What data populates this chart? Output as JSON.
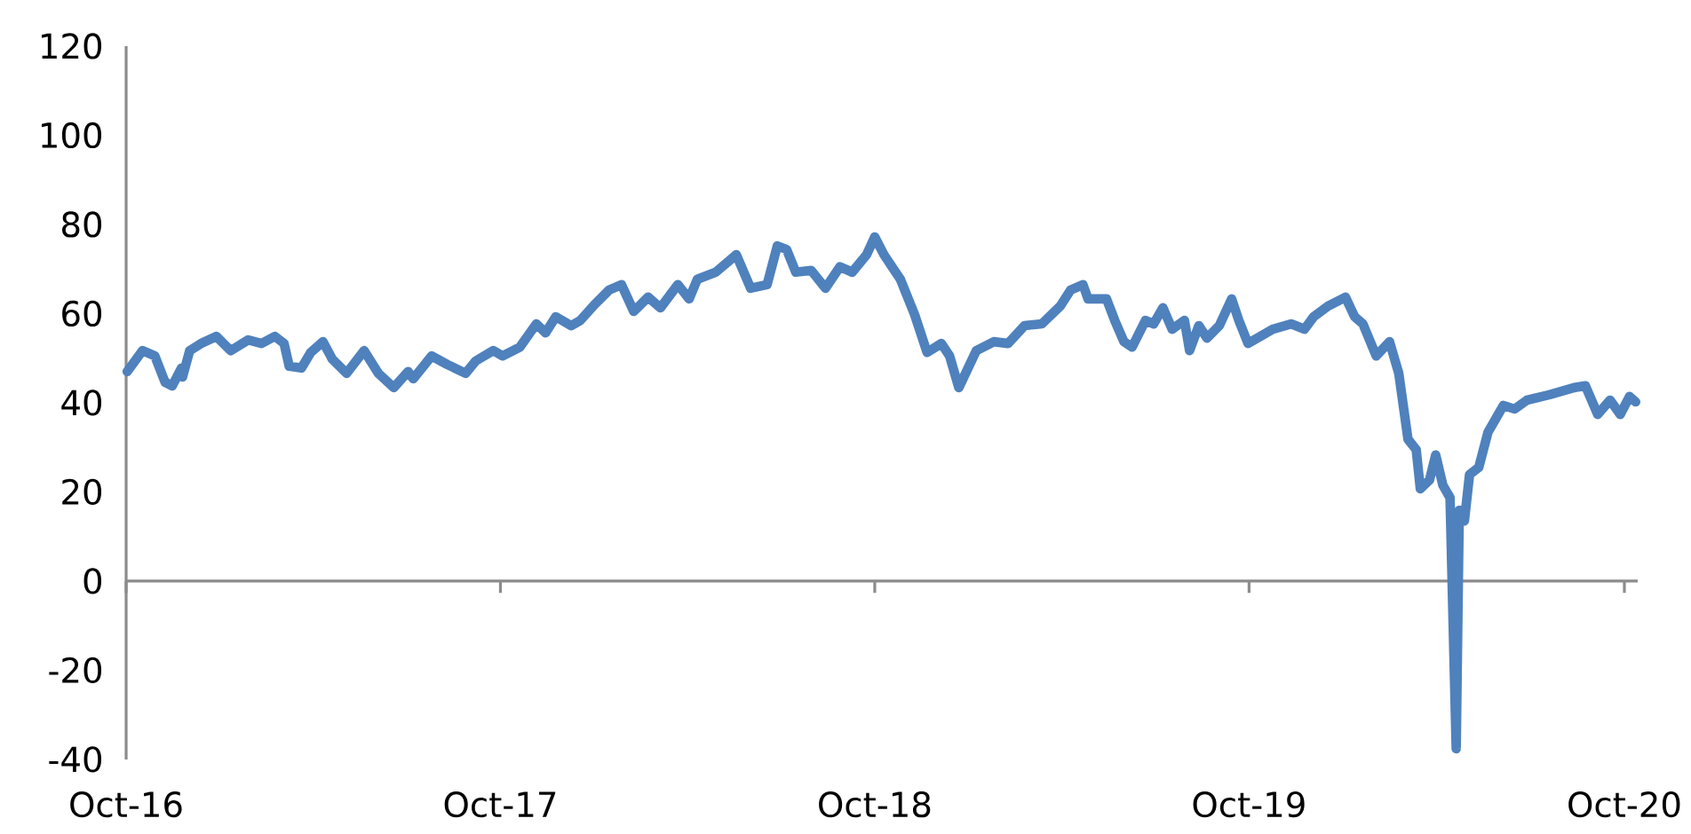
{
  "chart_data": {
    "type": "line",
    "x": [
      "2016-10-02",
      "2016-10-17",
      "2016-10-29",
      "2016-11-08",
      "2016-11-15",
      "2016-11-24",
      "2016-11-25",
      "2016-12-02",
      "2016-12-13",
      "2016-12-28",
      "2017-01-11",
      "2017-01-28",
      "2017-02-10",
      "2017-02-23",
      "2017-03-04",
      "2017-03-09",
      "2017-03-21",
      "2017-03-30",
      "2017-04-11",
      "2017-04-20",
      "2017-05-04",
      "2017-05-21",
      "2017-06-04",
      "2017-06-19",
      "2017-07-03",
      "2017-07-08",
      "2017-07-26",
      "2017-08-10",
      "2017-08-28",
      "2017-09-07",
      "2017-09-24",
      "2017-10-03",
      "2017-10-20",
      "2017-11-05",
      "2017-11-14",
      "2017-11-24",
      "2017-12-09",
      "2017-12-18",
      "2018-01-01",
      "2018-01-15",
      "2018-01-27",
      "2018-02-08",
      "2018-02-22",
      "2018-03-06",
      "2018-03-23",
      "2018-04-03",
      "2018-04-11",
      "2018-04-29",
      "2018-05-19",
      "2018-06-02",
      "2018-06-18",
      "2018-06-28",
      "2018-07-07",
      "2018-07-16",
      "2018-07-31",
      "2018-08-14",
      "2018-08-28",
      "2018-09-09",
      "2018-09-23",
      "2018-10-01",
      "2018-10-10",
      "2018-10-26",
      "2018-11-09",
      "2018-11-21",
      "2018-12-05",
      "2018-12-13",
      "2018-12-22",
      "2019-01-08",
      "2019-01-25",
      "2019-02-08",
      "2019-02-24",
      "2019-03-13",
      "2019-03-31",
      "2019-04-10",
      "2019-04-22",
      "2019-04-27",
      "2019-05-15",
      "2019-05-23",
      "2019-06-01",
      "2019-06-09",
      "2019-06-22",
      "2019-06-30",
      "2019-07-09",
      "2019-07-18",
      "2019-07-30",
      "2019-08-04",
      "2019-08-13",
      "2019-08-21",
      "2019-09-02",
      "2019-09-14",
      "2019-09-21",
      "2019-09-30",
      "2019-10-09",
      "2019-10-24",
      "2019-11-11",
      "2019-11-24",
      "2019-12-03",
      "2019-12-17",
      "2020-01-03",
      "2020-01-12",
      "2020-01-20",
      "2020-02-02",
      "2020-02-15",
      "2020-02-24",
      "2020-03-04",
      "2020-03-12",
      "2020-03-16",
      "2020-03-25",
      "2020-03-31",
      "2020-04-07",
      "2020-04-14",
      "2020-04-20",
      "2020-04-23",
      "2020-04-28",
      "2020-05-03",
      "2020-05-12",
      "2020-05-21",
      "2020-06-05",
      "2020-06-16",
      "2020-06-28",
      "2020-07-20",
      "2020-08-13",
      "2020-08-24",
      "2020-09-05",
      "2020-09-17",
      "2020-09-27",
      "2020-10-06",
      "2020-10-12"
    ],
    "series": [
      {
        "color": "#4f81bd",
        "values": [
          47,
          51.7,
          50.5,
          44.6,
          43.8,
          47.8,
          45.8,
          51.7,
          53.3,
          54.9,
          51.7,
          54.1,
          53.3,
          54.9,
          53.3,
          48.2,
          47.8,
          51.3,
          53.7,
          49.8,
          46.6,
          51.7,
          46.6,
          43.4,
          47,
          45.4,
          50.5,
          48.6,
          46.6,
          49.4,
          51.7,
          50.5,
          52.5,
          57.7,
          55.7,
          59.3,
          57.3,
          58.5,
          62.1,
          65.3,
          66.5,
          60.5,
          63.7,
          61.3,
          66.5,
          63.3,
          67.7,
          69.3,
          73.2,
          65.7,
          66.5,
          75.2,
          74.4,
          69.3,
          69.7,
          65.7,
          70.5,
          69.3,
          73.2,
          77.2,
          73.2,
          67.7,
          59.7,
          51.3,
          53.3,
          50.5,
          43.4,
          51.7,
          53.7,
          53.3,
          57.3,
          57.7,
          61.7,
          65.3,
          66.5,
          63.3,
          63.3,
          58.5,
          53.7,
          52.5,
          58.5,
          57.7,
          61.3,
          56.5,
          58.5,
          51.7,
          57.3,
          54.5,
          57.3,
          63.3,
          58.5,
          53.3,
          54.5,
          56.5,
          57.7,
          56.5,
          59.3,
          61.7,
          63.7,
          59.3,
          57.7,
          50.5,
          53.7,
          46.6,
          31.8,
          29.5,
          20.7,
          22.7,
          28.3,
          21.5,
          18.7,
          -37.6,
          15.9,
          13.5,
          23.9,
          25.5,
          33.4,
          39.4,
          38.6,
          40.6,
          41.8,
          43.4,
          43.8,
          37.4,
          40.6,
          37.4,
          41.4,
          40.2
        ]
      }
    ],
    "xlim": [
      "2016-10-01",
      "2020-10-14"
    ],
    "xticks": [
      {
        "value": "2016-10-01",
        "label": "Oct-16"
      },
      {
        "value": "2017-10-01",
        "label": "Oct-17"
      },
      {
        "value": "2018-10-01",
        "label": "Oct-18"
      },
      {
        "value": "2019-10-01",
        "label": "Oct-19"
      },
      {
        "value": "2020-10-01",
        "label": "Oct-20"
      }
    ],
    "ylim": [
      -40,
      120
    ],
    "yticks": [
      -40,
      -20,
      0,
      20,
      40,
      60,
      80,
      100,
      120
    ],
    "ref_lines": [
      {
        "axis": "y",
        "value": 0,
        "color": "#8c8c8c"
      }
    ],
    "grid": false,
    "legend": false,
    "marker": "none",
    "line_style": "solid"
  }
}
